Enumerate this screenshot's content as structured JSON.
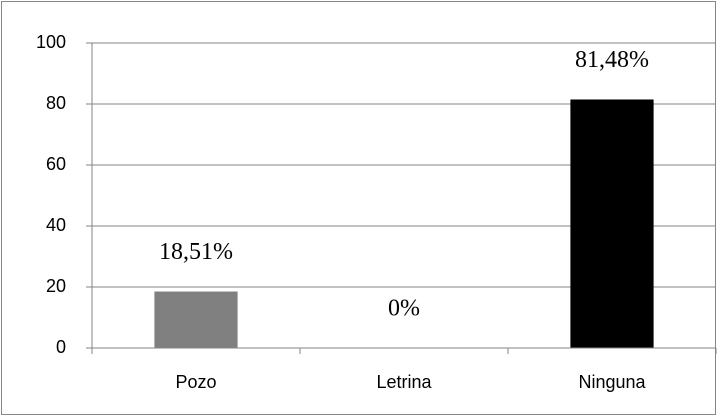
{
  "chart_data": {
    "type": "bar",
    "categories": [
      "Pozo",
      "Letrina",
      "Ninguna"
    ],
    "values": [
      18.51,
      0,
      81.48
    ],
    "value_labels": [
      "18,51%",
      "0%",
      "81,48%"
    ],
    "colors": [
      "#808080",
      "#808080",
      "#000000"
    ],
    "ylim": [
      0,
      100
    ],
    "yticks": [
      0,
      20,
      40,
      60,
      80,
      100
    ],
    "grid": true
  }
}
